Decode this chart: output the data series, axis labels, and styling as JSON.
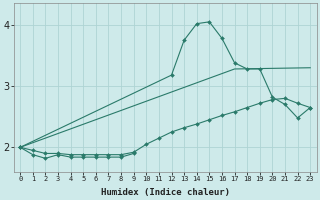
{
  "xlabel": "Humidex (Indice chaleur)",
  "xlim": [
    -0.5,
    23.5
  ],
  "ylim": [
    1.6,
    4.35
  ],
  "yticks": [
    2,
    3,
    4
  ],
  "xticks": [
    0,
    1,
    2,
    3,
    4,
    5,
    6,
    7,
    8,
    9,
    10,
    11,
    12,
    13,
    14,
    15,
    16,
    17,
    18,
    19,
    20,
    21,
    22,
    23
  ],
  "bg_color": "#ceeaea",
  "grid_color": "#aed4d4",
  "line_color": "#2a7a6a",
  "series": [
    {
      "x": [
        0,
        1,
        2,
        3,
        4,
        5,
        6,
        7,
        8,
        9
      ],
      "y": [
        2.0,
        1.88,
        1.82,
        1.88,
        1.84,
        1.84,
        1.84,
        1.84,
        1.84,
        1.9
      ],
      "marker": "D",
      "markersize": 2.0,
      "linewidth": 0.8
    },
    {
      "x": [
        0,
        1,
        2,
        3,
        4,
        5,
        6,
        7,
        8,
        9,
        10,
        11,
        12,
        13,
        14,
        15,
        16,
        17,
        18,
        19,
        20,
        21,
        22,
        23
      ],
      "y": [
        2.0,
        1.95,
        1.9,
        1.9,
        1.88,
        1.88,
        1.88,
        1.88,
        1.88,
        1.92,
        2.05,
        2.15,
        2.25,
        2.32,
        2.38,
        2.45,
        2.52,
        2.58,
        2.65,
        2.72,
        2.78,
        2.8,
        2.72,
        2.65
      ],
      "marker": "D",
      "markersize": 2.0,
      "linewidth": 0.8
    },
    {
      "x": [
        0,
        12,
        13,
        14,
        15,
        16,
        17,
        18,
        19,
        20,
        21,
        22,
        23
      ],
      "y": [
        2.0,
        3.18,
        3.75,
        4.02,
        4.05,
        3.78,
        3.38,
        3.28,
        3.28,
        2.82,
        2.7,
        2.48,
        2.65
      ],
      "marker": "D",
      "markersize": 2.0,
      "linewidth": 0.8
    },
    {
      "x": [
        0,
        17,
        23
      ],
      "y": [
        2.0,
        3.28,
        3.3
      ],
      "marker": null,
      "markersize": 0,
      "linewidth": 0.8
    }
  ]
}
